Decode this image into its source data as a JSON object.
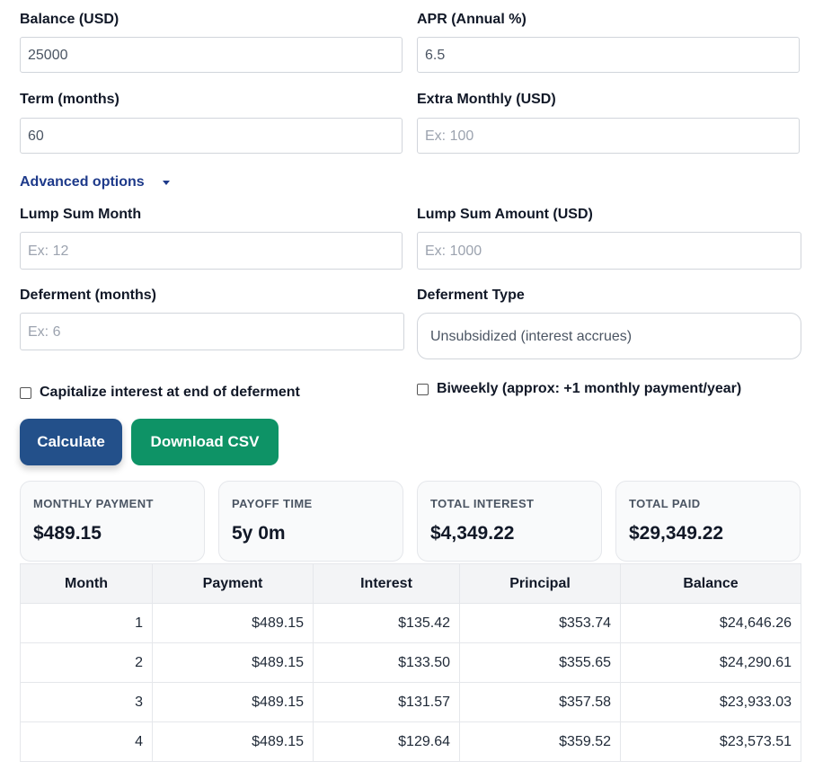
{
  "form": {
    "balance": {
      "label": "Balance (USD)",
      "value": "25000"
    },
    "apr": {
      "label": "APR (Annual %)",
      "value": "6.5"
    },
    "term": {
      "label": "Term (months)",
      "value": "60"
    },
    "extra": {
      "label": "Extra Monthly (USD)",
      "placeholder": "Ex: 100"
    },
    "advanced": "Advanced options",
    "lump_month": {
      "label": "Lump Sum Month",
      "placeholder": "Ex: 12"
    },
    "lump_amount": {
      "label": "Lump Sum Amount (USD)",
      "placeholder": "Ex: 1000"
    },
    "deferment": {
      "label": "Deferment (months)",
      "placeholder": "Ex: 6"
    },
    "deferment_type": {
      "label": "Deferment Type",
      "value": "Unsubsidized (interest accrues)"
    },
    "capitalize": "Capitalize interest at end of deferment",
    "biweekly": "Biweekly (approx: +1 monthly payment/year)"
  },
  "buttons": {
    "calculate": "Calculate",
    "download": "Download CSV"
  },
  "summary": [
    {
      "label": "MONTHLY PAYMENT",
      "value": "$489.15"
    },
    {
      "label": "PAYOFF TIME",
      "value": "5y 0m"
    },
    {
      "label": "TOTAL INTEREST",
      "value": "$4,349.22"
    },
    {
      "label": "TOTAL PAID",
      "value": "$29,349.22"
    }
  ],
  "table": {
    "columns": [
      "Month",
      "Payment",
      "Interest",
      "Principal",
      "Balance"
    ],
    "rows": [
      [
        "1",
        "$489.15",
        "$135.42",
        "$353.74",
        "$24,646.26"
      ],
      [
        "2",
        "$489.15",
        "$133.50",
        "$355.65",
        "$24,290.61"
      ],
      [
        "3",
        "$489.15",
        "$131.57",
        "$357.58",
        "$23,933.03"
      ],
      [
        "4",
        "$489.15",
        "$129.64",
        "$359.52",
        "$23,573.51"
      ]
    ]
  }
}
